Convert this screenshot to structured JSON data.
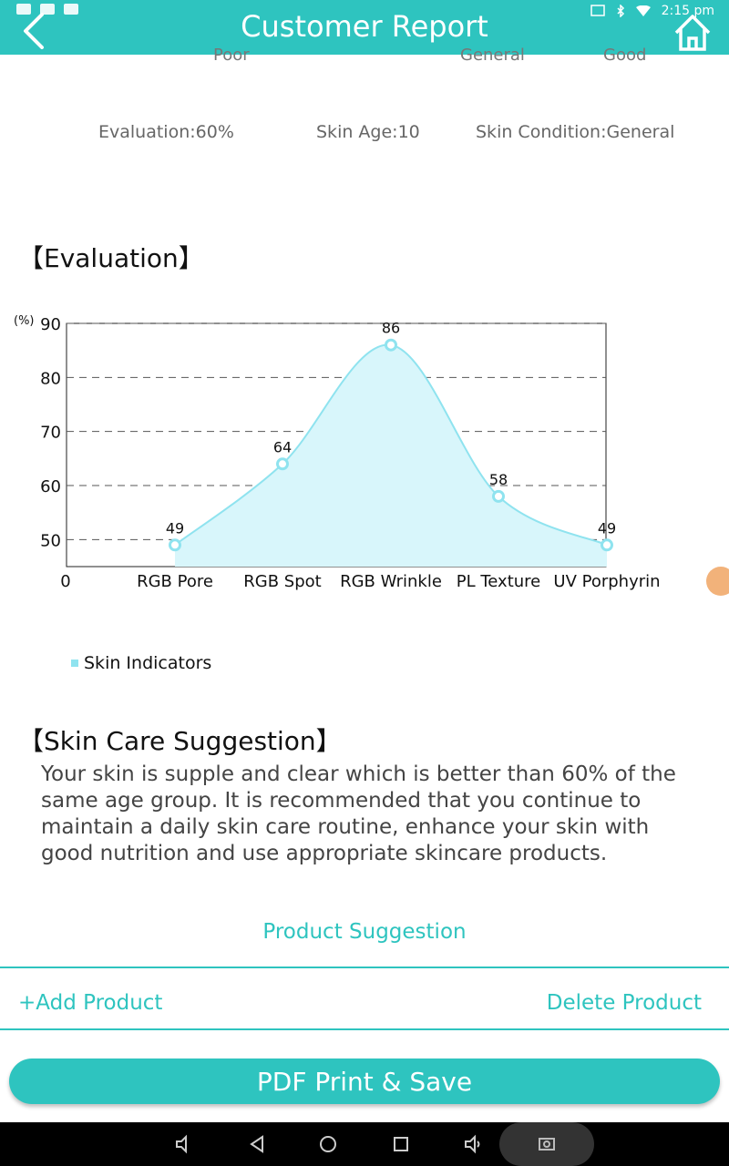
{
  "header": {
    "title": "Customer Report",
    "status_time": "2:15 pm"
  },
  "scale_labels": [
    "Poor",
    "General",
    "Good"
  ],
  "metrics": {
    "evaluation": "Evaluation:60%",
    "skin_age": "Skin Age:10",
    "skin_condition": "Skin Condition:General"
  },
  "sections": {
    "evaluation_title": "【Evaluation】",
    "skin_care_title": "【Skin Care Suggestion】"
  },
  "chart_data": {
    "type": "area",
    "categories": [
      "RGB Pore",
      "RGB Spot",
      "RGB Wrinkle",
      "PL Texture",
      "UV Porphyrin"
    ],
    "series": [
      {
        "name": "Skin Indicators",
        "values": [
          49,
          64,
          86,
          58,
          49
        ]
      }
    ],
    "ylabel": "(%)",
    "ylim": [
      45,
      90
    ],
    "yticks": [
      90,
      80,
      70,
      60,
      50
    ],
    "x_origin_label": "0",
    "grid": "horizontal-dashed",
    "colors": {
      "fill": "#d8f6fb",
      "line": "#8fe3ef"
    },
    "legend": "bottom-left"
  },
  "suggestion_text": "Your skin is supple and clear which is better than 60% of the same age group. It is recommended that you continue to maintain a daily skin care routine, enhance your skin with good nutrition and use appropriate skincare products.",
  "products": {
    "section_label": "Product Suggestion",
    "add_label": "+Add Product",
    "delete_label": "Delete Product"
  },
  "pdf_button": "PDF Print & Save",
  "colors": {
    "accent": "#2ec4bf"
  }
}
